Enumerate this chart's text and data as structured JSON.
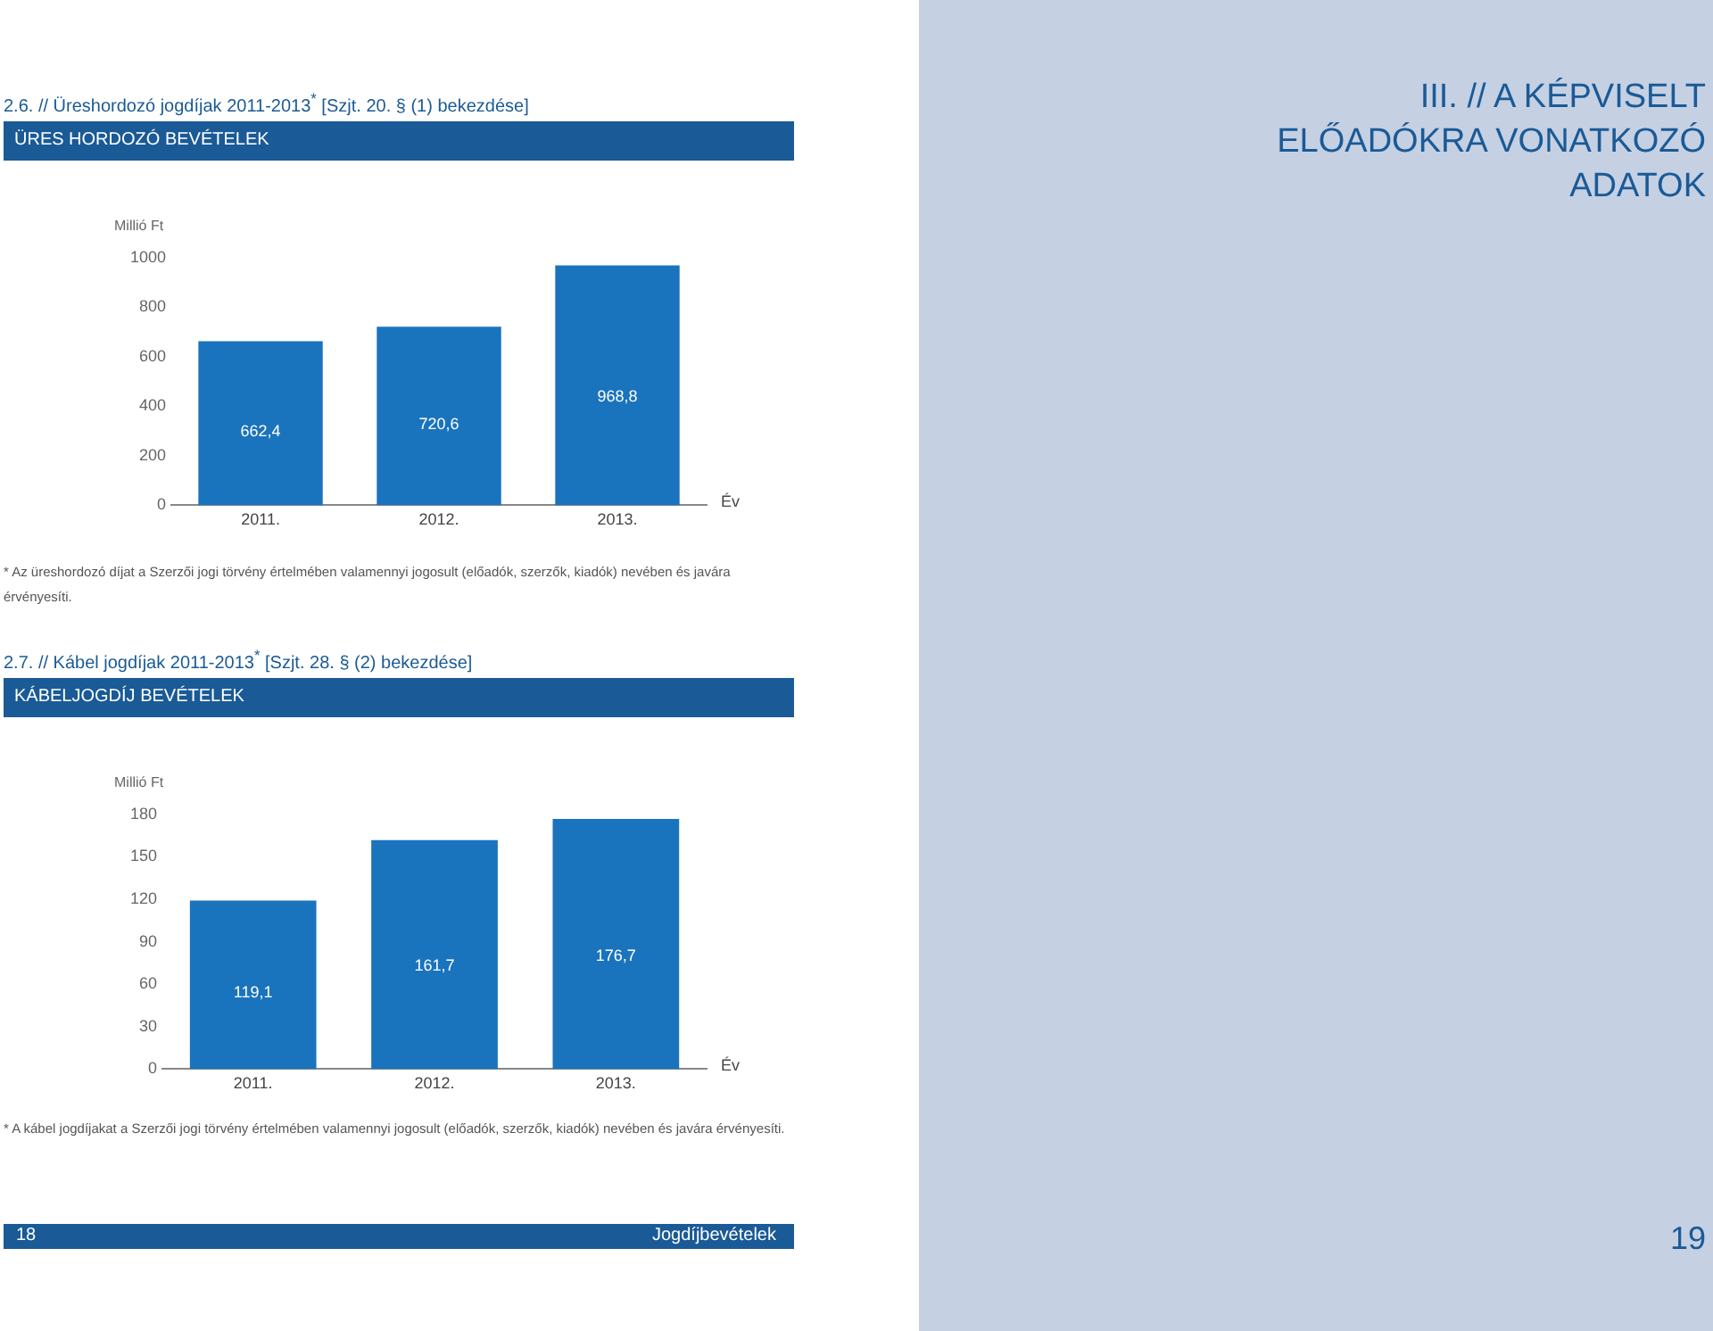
{
  "chart_data": [
    {
      "type": "bar",
      "title": "2.6. // Üreshordozó jogdíjak 2011-2013$^{*}$ [Szjt. 20. § (1) bekezdése]",
      "subtitle": "ÜRES HORDOZÓ BEVÉTELEK",
      "ylabel": "Millió Ft",
      "xlabel": "Év",
      "categories": [
        "2011.",
        "2012.",
        "2013."
      ],
      "values": [
        662.4,
        720.6,
        968.8
      ],
      "value_labels": [
        "662,4",
        "720,6",
        "968,8"
      ],
      "color": "#1a73bd",
      "ylim": [
        0,
        1000
      ],
      "yticks": [
        0,
        200,
        400,
        600,
        800,
        1000
      ],
      "grid": false,
      "legend": false,
      "annotations": [
        "* Az üreshordozó díjat a Szerzői jogi törvény értelmében valamennyi jogosult (előadók, szerzők, kiadók) nevében és javára érvényesíti."
      ]
    },
    {
      "type": "bar",
      "title": "2.7. // Kábel jogdíjak 2011-2013$^{*}$ [Szjt. 28. § (2) bekezdése]",
      "subtitle": "KÁBELJOGDÍJ BEVÉTELEK",
      "ylabel": "Millió Ft",
      "xlabel": "Év",
      "categories": [
        "2011.",
        "2012.",
        "2013."
      ],
      "values": [
        119.1,
        161.7,
        176.7
      ],
      "value_labels": [
        "119,1",
        "161,7",
        "176,7"
      ],
      "color": "#1a73bd",
      "ylim": [
        0,
        180
      ],
      "yticks": [
        0,
        30,
        60,
        90,
        120,
        150,
        180
      ],
      "grid": false,
      "legend": false,
      "annotations": [
        "* A kábel jogdíjakat a Szerzői jogi törvény értelmében valamennyi jogosult (előadók, szerzők, kiadók) nevében és javára érvényesíti."
      ]
    },
    {
      "type": "other",
      "title": "III. // A KÉPVISELT ELŐADÓKRA VONATKOZÓ ADATOK",
      "annotations": [
        "18",
        "Jogdíjbevételek",
        "19"
      ]
    }
  ]
}
